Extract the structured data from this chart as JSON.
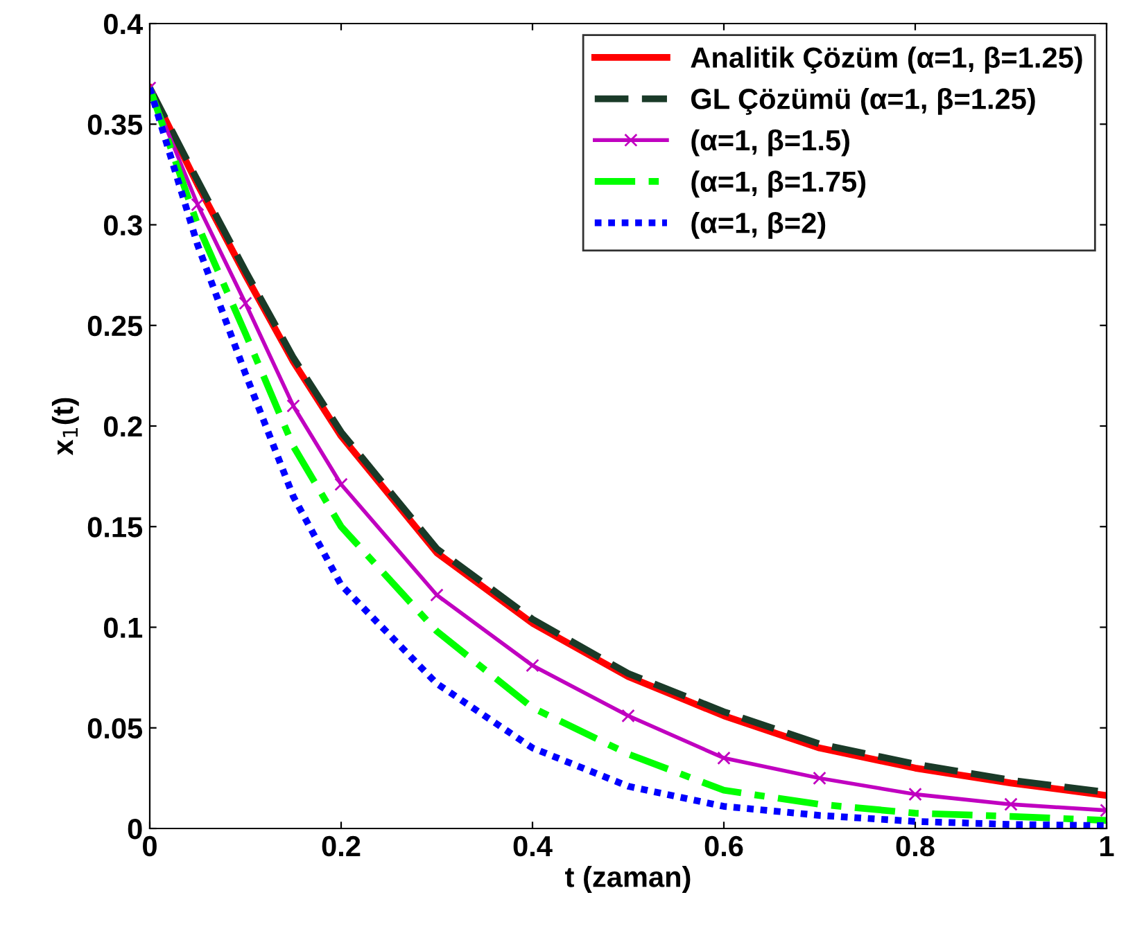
{
  "chart_data": {
    "type": "line",
    "xlabel": "t (zaman)",
    "ylabel": "x$_{1}$(t)",
    "xlim": [
      0,
      1
    ],
    "ylim": [
      0,
      0.4
    ],
    "xticks": [
      0,
      0.2,
      0.4,
      0.6,
      0.8,
      1
    ],
    "yticks": [
      0,
      0.05,
      0.1,
      0.15,
      0.2,
      0.25,
      0.3,
      0.35,
      0.4
    ],
    "x": [
      0,
      0.05,
      0.1,
      0.15,
      0.2,
      0.3,
      0.4,
      0.5,
      0.6,
      0.7,
      0.8,
      0.9,
      1
    ],
    "grid": false,
    "legend": "top right",
    "series": [
      {
        "name": "Analitik Çözüm (α=1, β=1.25)",
        "color": "#ff0000",
        "line_style": "solid",
        "marker": "none",
        "values": [
          0.368,
          0.32,
          0.275,
          0.232,
          0.195,
          0.137,
          0.102,
          0.0755,
          0.056,
          0.04,
          0.03,
          0.0226,
          0.0164
        ]
      },
      {
        "name": "GL Çözümü (α=1, β=1.25)",
        "color": "#1a3a28",
        "line_style": "dashed",
        "marker": "none",
        "values": [
          0.368,
          0.322,
          0.277,
          0.234,
          0.197,
          0.139,
          0.104,
          0.077,
          0.058,
          0.042,
          0.032,
          0.024,
          0.018
        ]
      },
      {
        "name": "(α=1, β=1.5)",
        "color": "#c000c0",
        "line_style": "solid",
        "marker": "cross",
        "values": [
          0.368,
          0.31,
          0.261,
          0.21,
          0.171,
          0.116,
          0.081,
          0.056,
          0.035,
          0.025,
          0.017,
          0.012,
          0.009
        ]
      },
      {
        "name": "(α=1, β=1.75)",
        "color": "#00ff00",
        "line_style": "dashdot",
        "marker": "none",
        "values": [
          0.368,
          0.3,
          0.246,
          0.19,
          0.15,
          0.098,
          0.06,
          0.037,
          0.019,
          0.012,
          0.0076,
          0.006,
          0.004
        ]
      },
      {
        "name": "(α=1, β=2)",
        "color": "#0000ff",
        "line_style": "dotted",
        "marker": "none",
        "values": [
          0.368,
          0.29,
          0.226,
          0.165,
          0.121,
          0.072,
          0.04,
          0.021,
          0.011,
          0.0065,
          0.0035,
          0.002,
          0.0014
        ]
      }
    ]
  }
}
